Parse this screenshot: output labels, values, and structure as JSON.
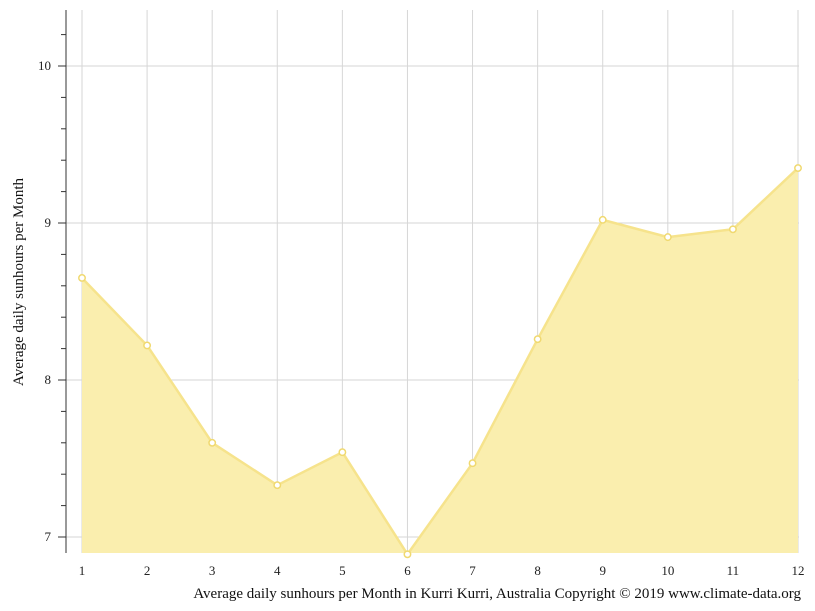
{
  "chart_data": {
    "type": "area",
    "title": "",
    "xlabel": "Average daily sunhours per Month in Kurri Kurri, Australia Copyright © 2019 www.climate-data.org",
    "ylabel": "Average daily sunhours per Month",
    "x": [
      1,
      2,
      3,
      4,
      5,
      6,
      7,
      8,
      9,
      10,
      11,
      12
    ],
    "xticks": [
      "1",
      "2",
      "3",
      "4",
      "5",
      "6",
      "7",
      "8",
      "9",
      "10",
      "11",
      "12"
    ],
    "values": [
      8.65,
      8.22,
      7.6,
      7.33,
      7.54,
      6.89,
      7.47,
      8.26,
      9.02,
      8.91,
      8.96,
      9.35
    ],
    "yticks": [
      "7",
      "8",
      "9",
      "10"
    ],
    "ylim": [
      6.9,
      10.35
    ],
    "grid": true,
    "legend": "none",
    "colors": {
      "fill": "#faeeae",
      "line": "#f6e38c",
      "marker_fill": "#ffffff",
      "marker_stroke": "#f0d970",
      "grid": "#d6d6d6",
      "axis": "#333333"
    }
  }
}
